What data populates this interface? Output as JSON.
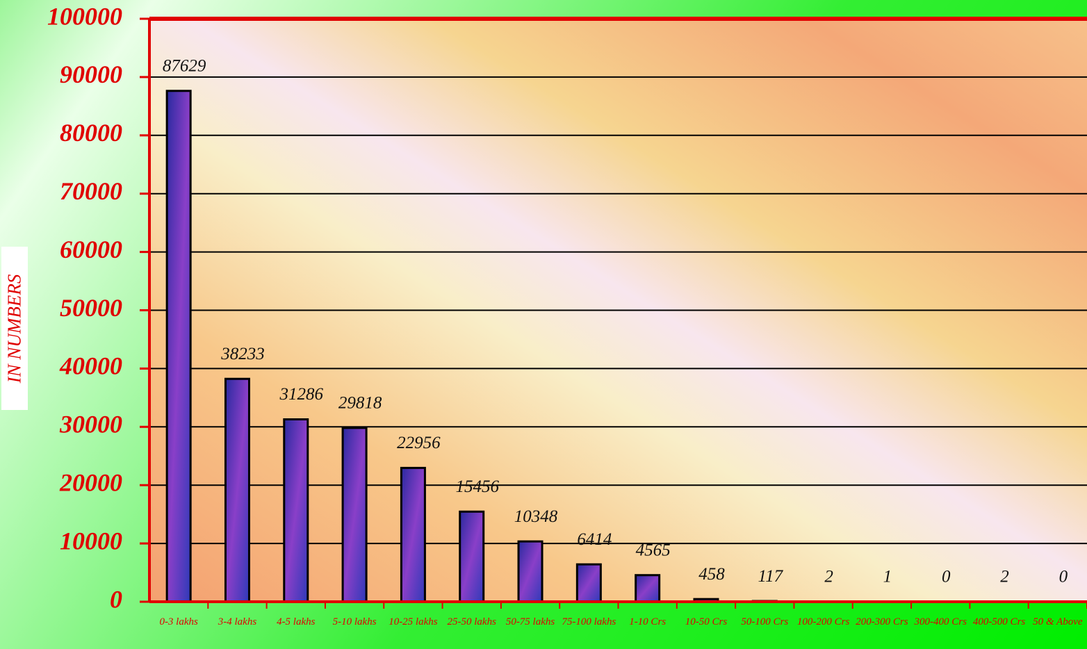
{
  "chart_data": {
    "type": "bar",
    "y_label": "IN NUMBERS",
    "categories": [
      "0-3 lakhs",
      "3-4 lakhs",
      "4-5 lakhs",
      "5-10 lakhs",
      "10-25 lakhs",
      "25-50 lakhs",
      "50-75 lakhs",
      "75-100 lakhs",
      "1-10 Crs",
      "10-50 Crs",
      "50-100 Crs",
      "100-200 Crs",
      "200-300 Crs",
      "300-400 Crs",
      "400-500 Crs",
      "50 & Above"
    ],
    "values": [
      87629,
      38233,
      31286,
      29818,
      22956,
      15456,
      10348,
      6414,
      4565,
      458,
      117,
      2,
      1,
      0,
      2,
      0
    ],
    "color": "#4b3cb4",
    "ylim": [
      0,
      100000
    ],
    "yticks": [
      0,
      10000,
      20000,
      30000,
      40000,
      50000,
      60000,
      70000,
      80000,
      90000,
      100000
    ],
    "grid": true
  }
}
